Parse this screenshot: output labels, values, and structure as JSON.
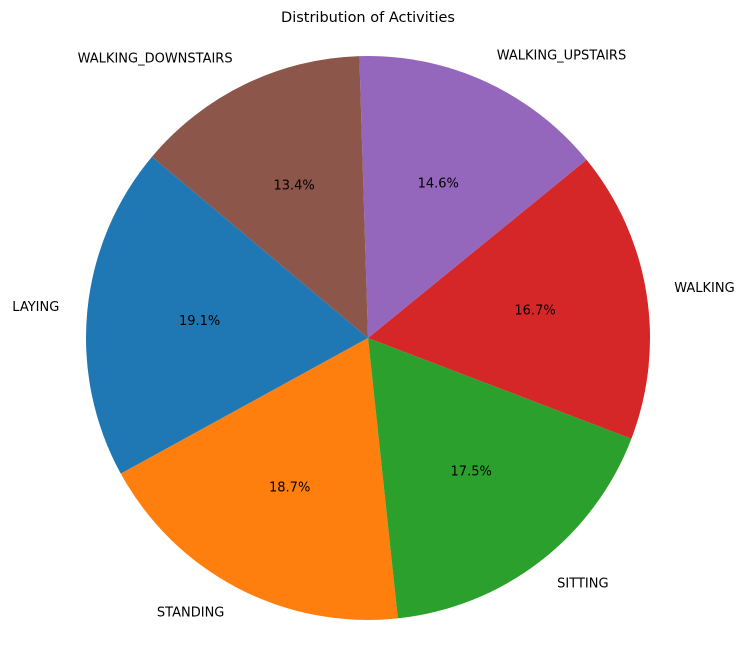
{
  "chart_data": {
    "type": "pie",
    "title": "Distribution of Activities",
    "start_angle_deg": 140,
    "direction": "counterclockwise",
    "slices": [
      {
        "label": "LAYING",
        "value": 19.1,
        "pct_text": "19.1%",
        "color": "#1f77b4"
      },
      {
        "label": "STANDING",
        "value": 18.7,
        "pct_text": "18.7%",
        "color": "#ff7f0e"
      },
      {
        "label": "SITTING",
        "value": 17.5,
        "pct_text": "17.5%",
        "color": "#2ca02c"
      },
      {
        "label": "WALKING",
        "value": 16.7,
        "pct_text": "16.7%",
        "color": "#d62728"
      },
      {
        "label": "WALKING_UPSTAIRS",
        "value": 14.6,
        "pct_text": "14.6%",
        "color": "#9467bd"
      },
      {
        "label": "WALKING_DOWNSTAIRS",
        "value": 13.4,
        "pct_text": "13.4%",
        "color": "#8c564b"
      }
    ]
  }
}
